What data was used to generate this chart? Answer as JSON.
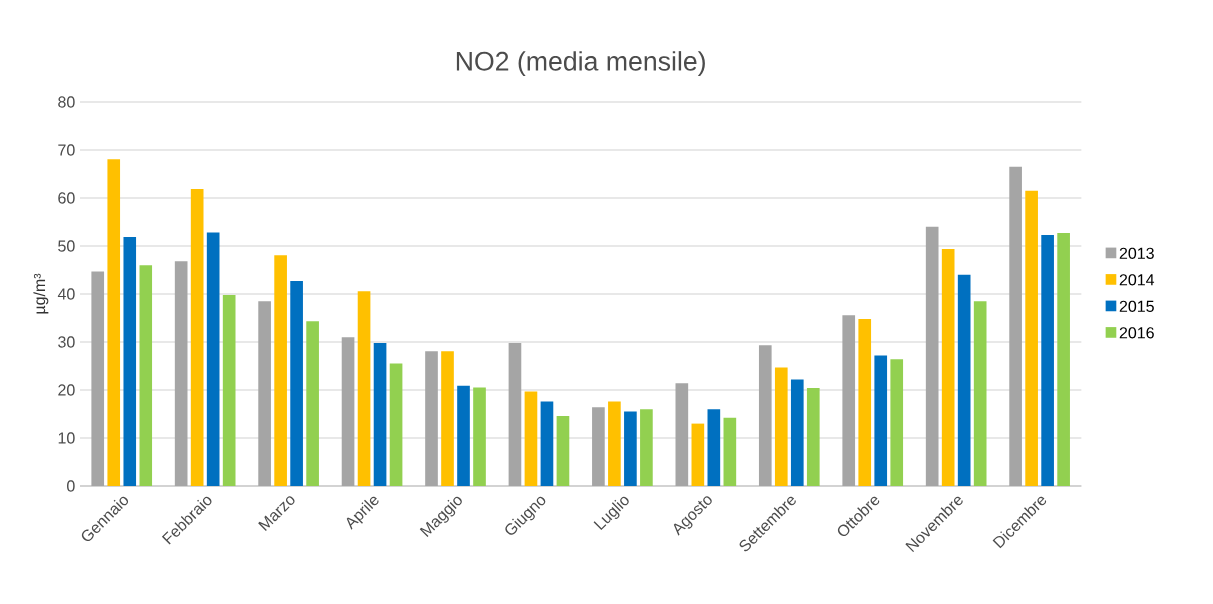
{
  "chart_data": {
    "type": "bar",
    "title": "NO2 (media mensile)",
    "ylabel": "µg/m³",
    "categories": [
      "Gennaio",
      "Febbraio",
      "Marzo",
      "Aprile",
      "Maggio",
      "Giugno",
      "Luglio",
      "Agosto",
      "Settembre",
      "Ottobre",
      "Novembre",
      "Dicembre"
    ],
    "series": [
      {
        "name": "2013",
        "color": "#a5a5a5",
        "values": [
          44.7,
          46.8,
          38.5,
          31,
          28.1,
          29.8,
          16.4,
          21.4,
          29.3,
          35.6,
          54,
          66.5
        ]
      },
      {
        "name": "2014",
        "color": "#ffc000",
        "values": [
          68.1,
          61.9,
          48.1,
          40.6,
          28.1,
          19.7,
          17.6,
          13,
          24.7,
          34.8,
          49.4,
          61.5
        ]
      },
      {
        "name": "2015",
        "color": "#0070c0",
        "values": [
          51.9,
          52.8,
          42.7,
          29.8,
          20.9,
          17.6,
          15.5,
          16,
          22.2,
          27.2,
          44,
          52.3
        ]
      },
      {
        "name": "2016",
        "color": "#92d050",
        "values": [
          46,
          39.8,
          34.3,
          25.5,
          20.5,
          14.6,
          16,
          14.2,
          20.4,
          26.4,
          38.5,
          52.7
        ]
      }
    ],
    "ylim": [
      0,
      80
    ],
    "yticks": [
      0,
      10,
      20,
      30,
      40,
      50,
      60,
      70,
      80
    ],
    "grid": "y",
    "legend": "right"
  }
}
